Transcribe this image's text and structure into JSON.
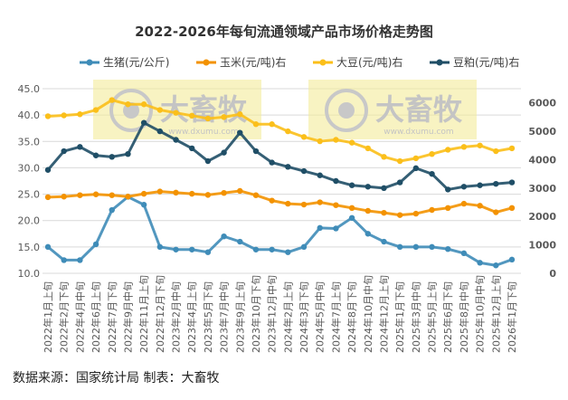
{
  "chart_data": {
    "type": "line",
    "title": "2022-2026年每旬流通领域产品市场价格走势图",
    "categories": [
      "2022年1月上旬",
      "2022年2月下旬",
      "2022年4月中旬",
      "2022年6月上旬",
      "2022年7月下旬",
      "2022年9月中旬",
      "2022年11月上旬",
      "2022年12月下旬",
      "2023年2月中旬",
      "2023年4月上旬",
      "2023年5月下旬",
      "2023年7月中旬",
      "2023年9月上旬",
      "2023年10月下旬",
      "2023年12月中旬",
      "2024年2月上旬",
      "2024年3月下旬",
      "2024年5月中旬",
      "2024年7月上旬",
      "2024年8月下旬",
      "2024年10月中旬",
      "2024年12月上旬",
      "2025年1月下旬",
      "2025年3月中旬",
      "2025年5月上旬",
      "2025年6月下旬",
      "2025年8月中旬",
      "2025年10月中旬",
      "2025年12月上旬",
      "2026年1月下旬"
    ],
    "left_axis": {
      "range": [
        10,
        45
      ],
      "ticks": [
        "10.0",
        "15.0",
        "20.0",
        "25.0",
        "30.0",
        "35.0",
        "40.0",
        "45.0"
      ]
    },
    "right_axis": {
      "range": [
        0,
        6500
      ],
      "ticks": [
        "0",
        "1000",
        "2000",
        "3000",
        "4000",
        "5000",
        "6000"
      ]
    },
    "grid": true,
    "legend_position": "top",
    "series": [
      {
        "name": "生猪(元/公斤)",
        "axis": "left",
        "color": "#3f8cb8",
        "values": [
          15,
          12.5,
          12.5,
          15.5,
          22,
          24.5,
          23,
          15,
          14.5,
          14.5,
          14,
          17,
          16,
          14.5,
          14.5,
          14,
          15,
          18.6,
          18.5,
          20.5,
          17.5,
          16,
          15,
          15,
          15,
          14.6,
          13.8,
          12,
          11.5,
          12.6
        ]
      },
      {
        "name": "玉米(元/吨)右",
        "axis": "right",
        "color": "#f39200",
        "values": [
          2680,
          2700,
          2750,
          2780,
          2750,
          2700,
          2800,
          2880,
          2840,
          2800,
          2760,
          2830,
          2900,
          2750,
          2560,
          2450,
          2420,
          2500,
          2400,
          2300,
          2200,
          2130,
          2050,
          2100,
          2230,
          2300,
          2450,
          2380,
          2150,
          2300
        ]
      },
      {
        "name": "大豆(元/吨)右",
        "axis": "right",
        "color": "#fbbf1a",
        "values": [
          5530,
          5560,
          5600,
          5750,
          6100,
          5950,
          5950,
          5750,
          5650,
          5550,
          5450,
          5500,
          5600,
          5250,
          5250,
          5000,
          4800,
          4650,
          4700,
          4600,
          4400,
          4100,
          3950,
          4050,
          4200,
          4350,
          4450,
          4500,
          4300,
          4400
        ]
      },
      {
        "name": "豆粕(元/吨)右",
        "axis": "right",
        "color": "#1f4e66",
        "values": [
          3640,
          4300,
          4450,
          4150,
          4100,
          4200,
          5300,
          5000,
          4700,
          4400,
          3950,
          4250,
          4950,
          4300,
          3900,
          3750,
          3600,
          3450,
          3250,
          3100,
          3050,
          3000,
          3200,
          3700,
          3500,
          2950,
          3050,
          3100,
          3150,
          3200
        ]
      }
    ]
  },
  "footer": {
    "source": "数据来源：国家统计局  制表：大畜牧"
  },
  "watermark": {
    "brand": "大畜牧",
    "url": "www.dxumu.com"
  }
}
